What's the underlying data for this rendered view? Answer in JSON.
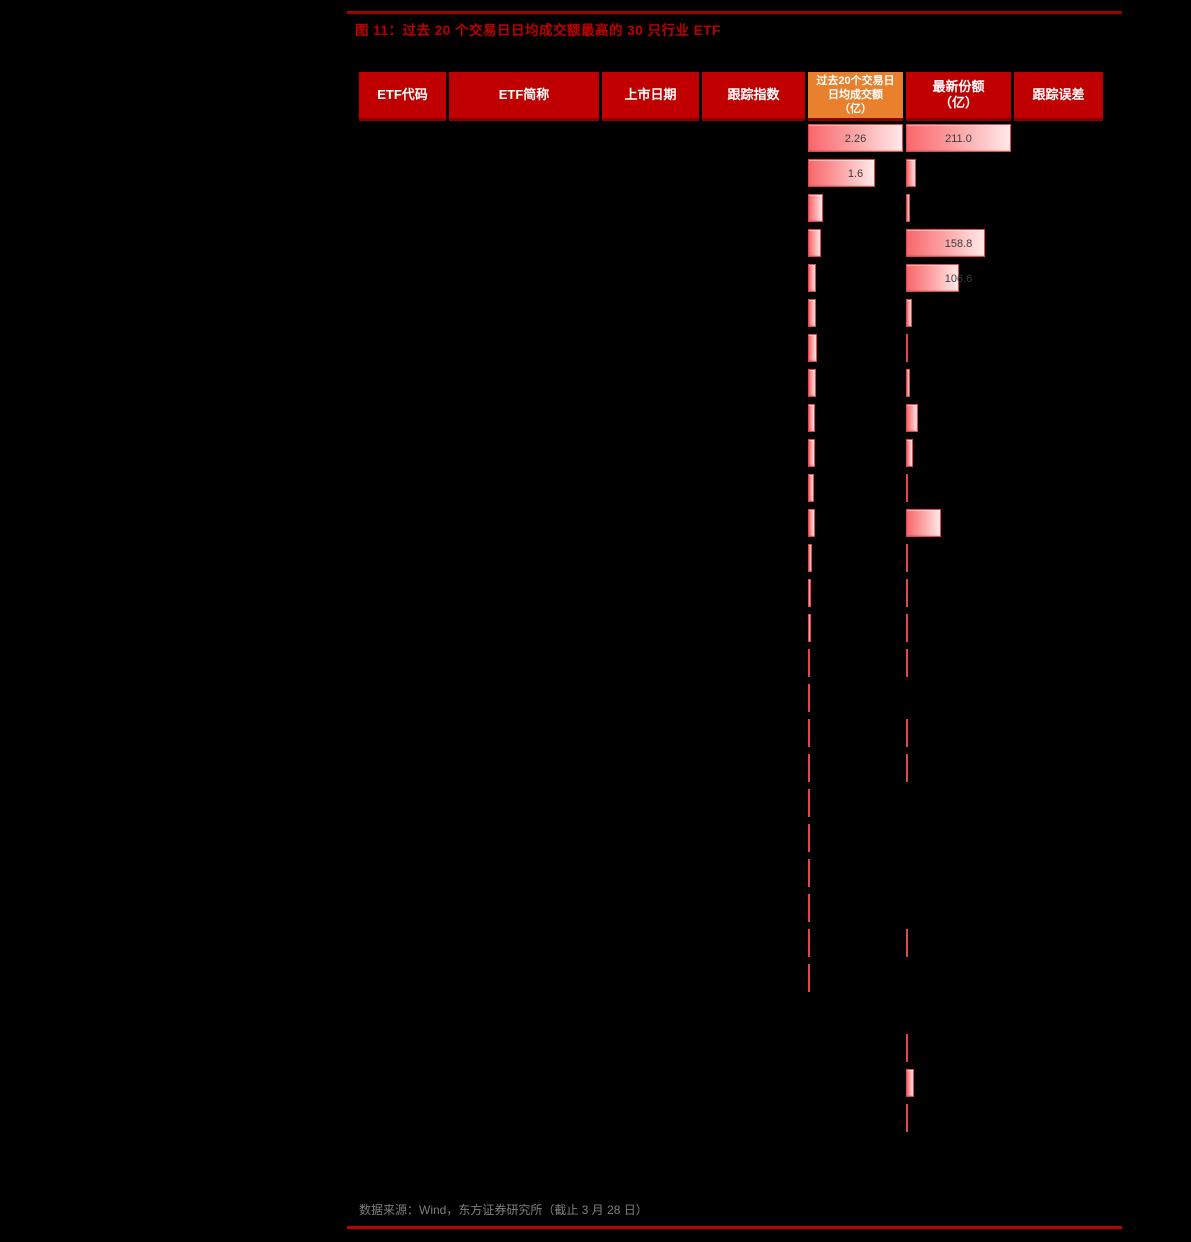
{
  "page": {
    "title": "图 11：过去 20 个交易日日均成交额最高的 30 只行业 ETF",
    "source_note": "数据来源：Wind，东方证券研究所（截止 3 月 28 日）"
  },
  "colors": {
    "accent_red": "#c00000",
    "header_orange": "#e8802d",
    "header_border_dark_red": "#8b0000",
    "top_rule": "#a00000",
    "bottom_rule": "#c00000",
    "bar_border": "#e2474d",
    "bar_fill_left": "#f9676b",
    "bar_fill_right": "#ffe9e9",
    "value_text": "#3c3c3c",
    "footnote_text": "#7f7f7f"
  },
  "table": {
    "headers": [
      {
        "label": "ETF代码"
      },
      {
        "label": "ETF简称"
      },
      {
        "label": "上市日期"
      },
      {
        "label": "跟踪指数"
      },
      {
        "label": "过去20个交易日\n日均成交额\n（亿）"
      },
      {
        "label": "最新份额\n（亿）"
      },
      {
        "label": "跟踪误差"
      }
    ],
    "rows": [
      {
        "turnover_pct": 100,
        "turnover": "2.26",
        "shares_pct": 100,
        "shares": "211.0"
      },
      {
        "turnover_pct": 70.8,
        "turnover": "1.6",
        "shares_pct": 9.5,
        "shares": ""
      },
      {
        "turnover_pct": 16,
        "turnover": "",
        "shares_pct": 4,
        "shares": ""
      },
      {
        "turnover_pct": 13.4,
        "turnover": "",
        "shares_pct": 75.3,
        "shares": "158.8"
      },
      {
        "turnover_pct": 8.2,
        "turnover": "",
        "shares_pct": 50.5,
        "shares": "106.6"
      },
      {
        "turnover_pct": 8.4,
        "turnover": "",
        "shares_pct": 5.5,
        "shares": ""
      },
      {
        "turnover_pct": 9.2,
        "turnover": "",
        "shares_pct": 2,
        "shares": ""
      },
      {
        "turnover_pct": 8.1,
        "turnover": "",
        "shares_pct": 4,
        "shares": ""
      },
      {
        "turnover_pct": 7.4,
        "turnover": "",
        "shares_pct": 11.4,
        "shares": ""
      },
      {
        "turnover_pct": 7,
        "turnover": "",
        "shares_pct": 6.7,
        "shares": ""
      },
      {
        "turnover_pct": 6.3,
        "turnover": "",
        "shares_pct": 1,
        "shares": ""
      },
      {
        "turnover_pct": 7.4,
        "turnover": "",
        "shares_pct": 33,
        "shares": ""
      },
      {
        "turnover_pct": 4.5,
        "turnover": "",
        "shares_pct": 1.2,
        "shares": ""
      },
      {
        "turnover_pct": 3.2,
        "turnover": "",
        "shares_pct": 1.2,
        "shares": ""
      },
      {
        "turnover_pct": 2.8,
        "turnover": "",
        "shares_pct": 2.2,
        "shares": ""
      },
      {
        "turnover_pct": 2.6,
        "turnover": "",
        "shares_pct": 2.2,
        "shares": ""
      },
      {
        "turnover_pct": 1.6,
        "turnover": "",
        "shares_pct": 0,
        "shares": ""
      },
      {
        "turnover_pct": 1.3,
        "turnover": "",
        "shares_pct": 1.4,
        "shares": ""
      },
      {
        "turnover_pct": 1.1,
        "turnover": "",
        "shares_pct": 1.4,
        "shares": ""
      },
      {
        "turnover_pct": 1,
        "turnover": "",
        "shares_pct": 0,
        "shares": ""
      },
      {
        "turnover_pct": 1,
        "turnover": "",
        "shares_pct": 0,
        "shares": ""
      },
      {
        "turnover_pct": 0.9,
        "turnover": "",
        "shares_pct": 0,
        "shares": ""
      },
      {
        "turnover_pct": 0.9,
        "turnover": "",
        "shares_pct": 0,
        "shares": ""
      },
      {
        "turnover_pct": 0.9,
        "turnover": "",
        "shares_pct": 2,
        "shares": ""
      },
      {
        "turnover_pct": 0.8,
        "turnover": "",
        "shares_pct": 0,
        "shares": ""
      },
      {
        "turnover_pct": 0,
        "turnover": "",
        "shares_pct": 0,
        "shares": ""
      },
      {
        "turnover_pct": 0,
        "turnover": "",
        "shares_pct": 1,
        "shares": ""
      },
      {
        "turnover_pct": 0,
        "turnover": "",
        "shares_pct": 7.6,
        "shares": ""
      },
      {
        "turnover_pct": 0,
        "turnover": "",
        "shares_pct": 1,
        "shares": ""
      },
      {
        "turnover_pct": 0,
        "turnover": "",
        "shares_pct": 0,
        "shares": ""
      }
    ]
  },
  "chart_data": {
    "type": "bar",
    "title": "图 11：过去 20 个交易日日均成交额最高的 30 只行业 ETF",
    "series": [
      {
        "name": "过去20个交易日日均成交额（亿）",
        "max_value": 2.26,
        "labeled_values": [
          2.26,
          1.6
        ]
      },
      {
        "name": "最新份额（亿）",
        "max_value": 211.0,
        "labeled_values": [
          211.0,
          158.8,
          106.6
        ]
      }
    ],
    "legend_position": "none",
    "grid": false
  }
}
